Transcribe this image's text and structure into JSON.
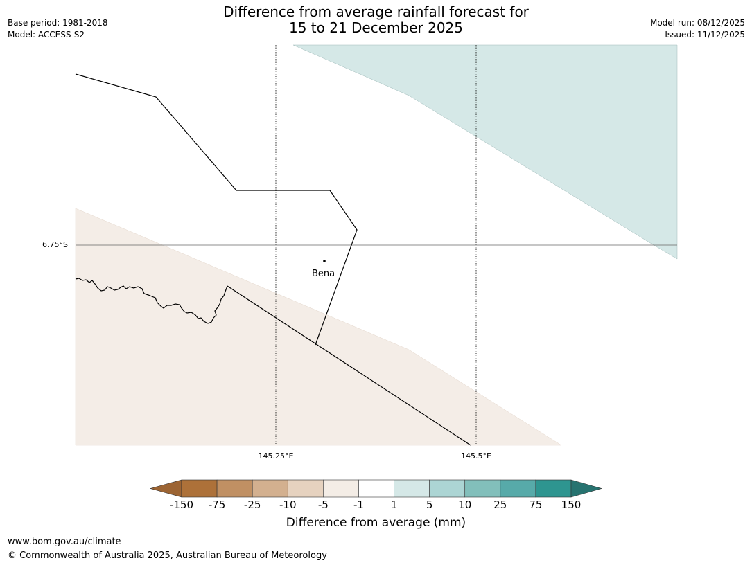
{
  "header": {
    "title_line1": "Difference from average rainfall forecast for",
    "title_line2": "15 to 21 December 2025",
    "base_period": "Base period: 1981-2018",
    "model": "Model: ACCESS-S2",
    "model_run": "Model run: 08/12/2025",
    "issued": "Issued: 11/12/2025"
  },
  "map": {
    "latitude_labels": [
      "6.75°S"
    ],
    "longitude_labels": [
      "145.25°E",
      "145.5°E"
    ],
    "places": [
      {
        "name": "Bena"
      }
    ],
    "fill_colors": {
      "wet": "#d5e8e7",
      "dry": "#f4ede7"
    }
  },
  "legend": {
    "title": "Difference from average (mm)",
    "tick_labels": [
      "-150",
      "-75",
      "-25",
      "-10",
      "-5",
      "-1",
      "1",
      "5",
      "10",
      "25",
      "75",
      "150"
    ],
    "colors": [
      "#9c6433",
      "#ad7139",
      "#c09063",
      "#d3b08f",
      "#e6d2bf",
      "#f4ede6",
      "#ffffff",
      "#d5e8e7",
      "#acd5d4",
      "#82bfbb",
      "#57aaa9",
      "#2e9590",
      "#277370"
    ]
  },
  "footer": {
    "url": "www.bom.gov.au/climate",
    "copyright": "© Commonwealth of Australia 2025, Australian Bureau of Meteorology"
  }
}
